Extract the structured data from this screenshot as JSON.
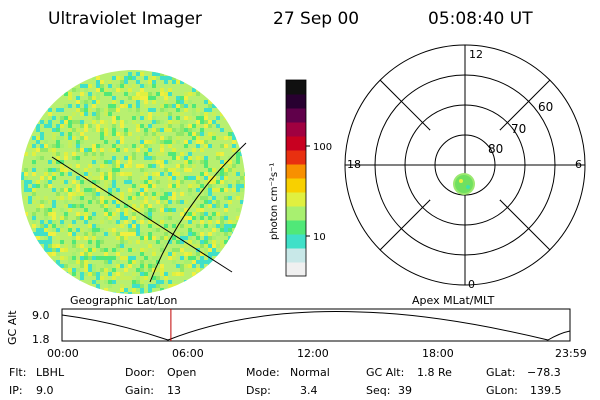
{
  "header": {
    "instrument": "Ultraviolet Imager",
    "date": "27 Sep 00",
    "time": "05:08:40 UT"
  },
  "colorbar": {
    "unit_label": "photon cm⁻²s⁻¹",
    "tick_labels": [
      "100",
      "10"
    ],
    "colors": [
      "#f0f0f0",
      "#c8e8e8",
      "#40e0c8",
      "#50e878",
      "#a8f070",
      "#e0f040",
      "#f8d000",
      "#f89000",
      "#e83010",
      "#c80020",
      "#a00040",
      "#60004a",
      "#280030",
      "#101010"
    ]
  },
  "left_panel": {
    "caption": "Geographic Lat/Lon"
  },
  "right_panel": {
    "caption": "Apex MLat/MLT",
    "mlt_labels": {
      "top": "12",
      "left": "18",
      "right": "6",
      "bottom": "0"
    },
    "lat_labels": [
      "60",
      "70",
      "80"
    ]
  },
  "timeline": {
    "ylabel": "GC Alt",
    "ymax": "9.0",
    "ymin": "1.8",
    "ticks": [
      "00:00",
      "06:00",
      "12:00",
      "18:00",
      "23:59"
    ],
    "marker_fraction": 0.2144
  },
  "info": {
    "flt_label": "Flt:",
    "flt_value": "LBHL",
    "ip_label": "IP:",
    "ip_value": "9.0",
    "door_label": "Door:",
    "door_value": "Open",
    "gain_label": "Gain:",
    "gain_value": "13",
    "mode_label": "Mode:",
    "mode_value": "Normal",
    "dsp_label": "Dsp:",
    "dsp_value": "3.4",
    "gcalt_label": "GC Alt:",
    "gcalt_value": "1.8 Re",
    "seq_label": "Seq:",
    "seq_value": "39",
    "glat_label": "GLat:",
    "glat_value": "−78.3",
    "glon_label": "GLon:",
    "glon_value": "139.5"
  }
}
